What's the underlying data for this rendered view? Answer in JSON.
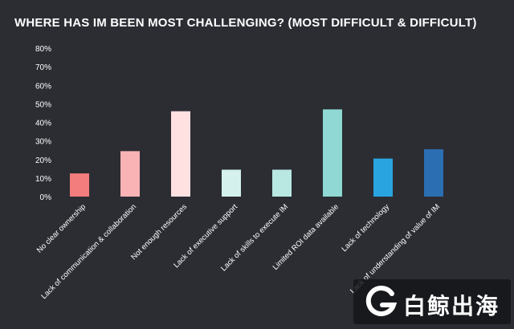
{
  "chart_data": {
    "type": "bar",
    "title": "WHERE HAS IM BEEN MOST CHALLENGING? (MOST DIFFICULT & DIFFICULT)",
    "categories": [
      "No clear ownership",
      "Lack of communication & collaboration",
      "Not enough resources",
      "Lack of executive support",
      "Lack of skills to execute IM",
      "Limited ROI data available",
      "Lack of technology",
      "Lack of understanding of value of IM"
    ],
    "values": [
      12.5,
      24.5,
      46,
      14.5,
      14.5,
      47,
      20.5,
      25.5
    ],
    "colors": [
      "#f37c7c",
      "#f9b3b5",
      "#ffe1e1",
      "#d4f1ee",
      "#b9e8e3",
      "#8fd8d3",
      "#2aa4e0",
      "#2b6eb2"
    ],
    "ylim": [
      0,
      80
    ],
    "yticks": [
      "0%",
      "10%",
      "20%",
      "30%",
      "40%",
      "50%",
      "60%",
      "70%",
      "80%"
    ],
    "xlabel": "",
    "ylabel": "",
    "grid": false,
    "legend": "none"
  },
  "watermark": {
    "text": "白鲸出海",
    "logo_icon": "whale-g-logo-icon"
  }
}
